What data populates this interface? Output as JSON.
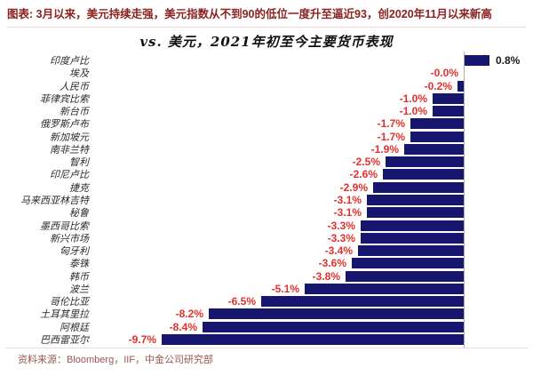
{
  "header": {
    "caption": "图表: 3月以来，美元持续走强，美元指数从不到90的低位一度升至逼近93，创2020年11月以来新高"
  },
  "chart_data": {
    "type": "bar",
    "orientation": "horizontal",
    "title": "vs. 美元，2021年初至今主要货币表现",
    "categories": [
      "印度卢比",
      "埃及",
      "人民币",
      "菲律宾比索",
      "新台币",
      "俄罗斯卢布",
      "新加坡元",
      "南非兰特",
      "智利",
      "印尼卢比",
      "捷克",
      "马来西亚林吉特",
      "秘鲁",
      "墨西哥比索",
      "新兴市场",
      "匈牙利",
      "泰铢",
      "韩币",
      "波兰",
      "哥伦比亚",
      "土耳其里拉",
      "阿根廷",
      "巴西雷亚尔"
    ],
    "values": [
      0.8,
      -0.0,
      -0.2,
      -1.0,
      -1.0,
      -1.7,
      -1.7,
      -1.9,
      -2.5,
      -2.6,
      -2.9,
      -3.1,
      -3.1,
      -3.3,
      -3.3,
      -3.4,
      -3.6,
      -3.8,
      -5.1,
      -6.5,
      -8.2,
      -8.4,
      -9.7
    ],
    "labels": [
      "0.8%",
      "-0.0%",
      "-0.2%",
      "-1.0%",
      "-1.0%",
      "-1.7%",
      "-1.7%",
      "-1.9%",
      "-2.5%",
      "-2.6%",
      "-2.9%",
      "-3.1%",
      "-3.1%",
      "-3.3%",
      "-3.3%",
      "-3.4%",
      "-3.6%",
      "-3.8%",
      "-5.1%",
      "-6.5%",
      "-8.2%",
      "-8.4%",
      "-9.7%"
    ],
    "unit": "%",
    "xlim": [
      -10,
      1
    ],
    "grid": false,
    "legend": false,
    "colors": {
      "bar": "#16166F",
      "value_negative": "#E3302C",
      "value_positive": "#1A1A1A",
      "axis": "#ABABAB"
    }
  },
  "footer": {
    "source": "资料来源：Bloomberg，IIF，中金公司研究部"
  }
}
